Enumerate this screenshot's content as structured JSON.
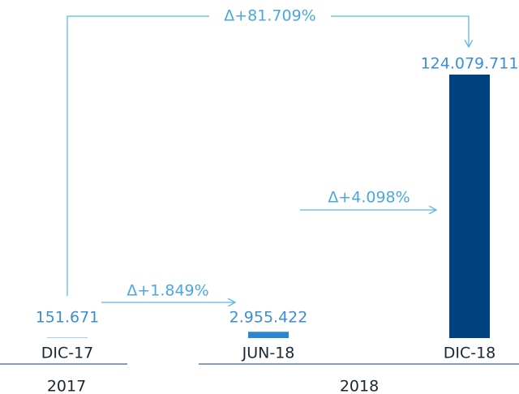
{
  "chart_data": {
    "type": "bar",
    "categories": [
      "DIC-17",
      "JUN-18",
      "DIC-18"
    ],
    "values": [
      151671,
      2955422,
      124079711
    ],
    "value_labels": [
      "151.671",
      "2.955.422",
      "124.079.711"
    ],
    "colors": [
      "#2a86d0",
      "#2a86d0",
      "#00427f"
    ],
    "groups": [
      "2017",
      "2018"
    ],
    "annotations": [
      "Δ+81.709%",
      "Δ+1.849%",
      "Δ+4.098%"
    ]
  }
}
